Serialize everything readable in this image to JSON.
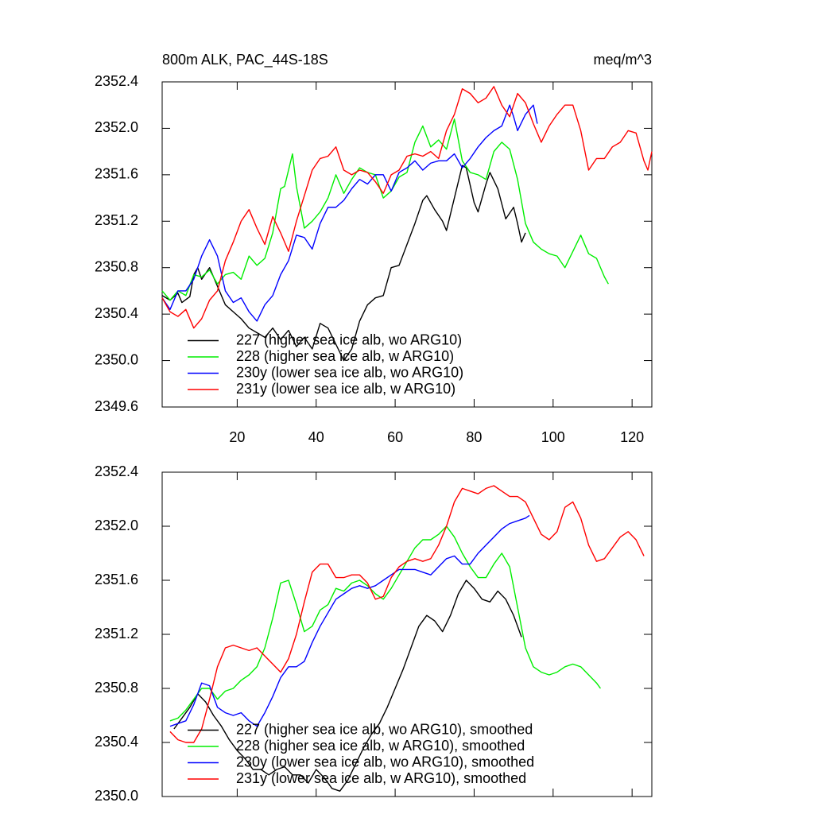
{
  "chart_data": [
    {
      "type": "line",
      "title": "800m ALK, PAC_44S-18S",
      "units": "meq/m^3",
      "xlim": [
        1,
        125
      ],
      "ylim": [
        2349.6,
        2352.4
      ],
      "xticks": [
        20,
        40,
        60,
        80,
        100,
        120
      ],
      "yticks": [
        2349.6,
        {
          "value": 2350.0,
          "label": "2350.0"
        },
        2350.4,
        2350.8,
        2351.2,
        2351.6,
        {
          "value": 2352.0,
          "label": "2352.0"
        },
        2352.4
      ],
      "legend": "lower left",
      "series": [
        {
          "name": "227 (higher sea ice alb, wo ARG10)",
          "color": "#000000",
          "x": [
            1,
            3,
            5,
            6,
            8,
            9,
            10,
            11,
            13,
            15,
            17,
            19,
            21,
            23,
            25,
            27,
            29,
            31,
            33,
            35,
            37,
            39,
            41,
            43,
            45,
            47,
            49,
            51,
            53,
            55,
            57,
            59,
            61,
            63,
            65,
            67,
            68,
            70,
            72,
            73,
            75,
            77,
            78,
            80,
            81,
            83,
            84,
            86,
            88,
            90,
            91,
            92,
            93
          ],
          "values": [
            2350.56,
            2350.52,
            2350.58,
            2350.5,
            2350.55,
            2350.74,
            2350.8,
            2350.7,
            2350.8,
            2350.64,
            2350.48,
            2350.42,
            2350.36,
            2350.28,
            2350.24,
            2350.2,
            2350.28,
            2350.18,
            2350.26,
            2350.12,
            2350.2,
            2350.1,
            2350.32,
            2350.28,
            2350.14,
            2350.0,
            2350.1,
            2350.34,
            2350.48,
            2350.54,
            2350.56,
            2350.8,
            2350.82,
            2351.0,
            2351.18,
            2351.38,
            2351.42,
            2351.3,
            2351.2,
            2351.12,
            2351.4,
            2351.68,
            2351.66,
            2351.36,
            2351.28,
            2351.52,
            2351.62,
            2351.48,
            2351.22,
            2351.32,
            2351.18,
            2351.02,
            2351.1
          ]
        },
        {
          "name": "228 (higher sea ice alb, w ARG10)",
          "color": "#00ee00",
          "x": [
            1,
            3,
            5,
            7,
            9,
            11,
            13,
            15,
            17,
            19,
            21,
            23,
            25,
            27,
            29,
            31,
            32,
            34,
            35,
            37,
            39,
            41,
            43,
            45,
            47,
            49,
            51,
            53,
            55,
            57,
            59,
            61,
            63,
            65,
            67,
            69,
            71,
            73,
            75,
            77,
            79,
            81,
            83,
            85,
            87,
            89,
            91,
            93,
            95,
            97,
            99,
            101,
            103,
            105,
            107,
            109,
            111,
            113,
            114
          ],
          "values": [
            2350.6,
            2350.52,
            2350.6,
            2350.56,
            2350.74,
            2350.72,
            2350.78,
            2350.66,
            2350.74,
            2350.76,
            2350.7,
            2350.9,
            2350.82,
            2350.88,
            2351.1,
            2351.48,
            2351.5,
            2351.78,
            2351.5,
            2351.14,
            2351.2,
            2351.28,
            2351.4,
            2351.6,
            2351.44,
            2351.56,
            2351.66,
            2351.62,
            2351.6,
            2351.4,
            2351.46,
            2351.58,
            2351.62,
            2351.88,
            2352.02,
            2351.84,
            2351.9,
            2351.82,
            2352.08,
            2351.72,
            2351.62,
            2351.6,
            2351.56,
            2351.8,
            2351.88,
            2351.82,
            2351.56,
            2351.18,
            2351.02,
            2350.96,
            2350.92,
            2350.9,
            2350.8,
            2350.94,
            2351.08,
            2350.92,
            2350.88,
            2350.72,
            2350.66
          ]
        },
        {
          "name": "230y (lower sea ice alb, wo ARG10)",
          "color": "#0000ff",
          "x": [
            1,
            3,
            5,
            7,
            9,
            11,
            13,
            15,
            17,
            19,
            21,
            23,
            25,
            27,
            29,
            31,
            33,
            35,
            37,
            39,
            41,
            43,
            45,
            47,
            49,
            51,
            53,
            55,
            57,
            59,
            61,
            63,
            65,
            67,
            69,
            71,
            73,
            75,
            77,
            79,
            81,
            83,
            85,
            87,
            89,
            90,
            91,
            93,
            95,
            96
          ],
          "values": [
            2350.54,
            2350.44,
            2350.6,
            2350.6,
            2350.7,
            2350.9,
            2351.04,
            2350.9,
            2350.6,
            2350.5,
            2350.54,
            2350.42,
            2350.34,
            2350.48,
            2350.56,
            2350.74,
            2350.86,
            2351.08,
            2351.06,
            2350.96,
            2351.18,
            2351.32,
            2351.32,
            2351.38,
            2351.48,
            2351.56,
            2351.52,
            2351.6,
            2351.6,
            2351.46,
            2351.62,
            2351.66,
            2351.72,
            2351.64,
            2351.7,
            2351.72,
            2351.72,
            2351.78,
            2351.66,
            2351.74,
            2351.84,
            2351.92,
            2351.98,
            2352.02,
            2352.2,
            2352.1,
            2351.98,
            2352.12,
            2352.2,
            2352.04
          ]
        },
        {
          "name": "231y (lower sea ice alb, w ARG10)",
          "color": "#ff0000",
          "x": [
            1,
            3,
            5,
            7,
            9,
            11,
            13,
            15,
            17,
            19,
            21,
            23,
            25,
            27,
            29,
            31,
            33,
            35,
            37,
            39,
            41,
            43,
            45,
            47,
            49,
            51,
            53,
            55,
            57,
            59,
            61,
            63,
            65,
            67,
            69,
            71,
            73,
            75,
            77,
            79,
            81,
            83,
            85,
            87,
            89,
            91,
            93,
            95,
            97,
            99,
            101,
            103,
            105,
            107,
            109,
            111,
            113,
            115,
            117,
            119,
            121,
            123,
            124,
            125
          ],
          "values": [
            2350.54,
            2350.42,
            2350.38,
            2350.44,
            2350.28,
            2350.36,
            2350.52,
            2350.6,
            2350.86,
            2351.02,
            2351.2,
            2351.3,
            2351.14,
            2351.0,
            2351.24,
            2351.1,
            2350.94,
            2351.2,
            2351.42,
            2351.64,
            2351.74,
            2351.76,
            2351.84,
            2351.64,
            2351.6,
            2351.64,
            2351.62,
            2351.54,
            2351.44,
            2351.6,
            2351.64,
            2351.76,
            2351.78,
            2351.76,
            2351.8,
            2351.74,
            2351.98,
            2352.12,
            2352.34,
            2352.3,
            2352.22,
            2352.26,
            2352.36,
            2352.2,
            2352.1,
            2352.3,
            2352.22,
            2352.04,
            2351.88,
            2352.02,
            2352.12,
            2352.2,
            2352.2,
            2351.98,
            2351.64,
            2351.74,
            2351.74,
            2351.84,
            2351.88,
            2351.98,
            2351.96,
            2351.72,
            2351.64,
            2351.8
          ]
        }
      ]
    },
    {
      "type": "line",
      "xlim": [
        1,
        125
      ],
      "ylim": [
        2350.0,
        2352.4
      ],
      "xticks": [
        20,
        40,
        60,
        80,
        100,
        120
      ],
      "xtick_labels": false,
      "yticks": [
        {
          "value": 2350.0,
          "label": "2350.0"
        },
        2350.4,
        2350.8,
        2351.2,
        2351.6,
        {
          "value": 2352.0,
          "label": "2352.0"
        },
        2352.4
      ],
      "legend": "lower left",
      "series": [
        {
          "name": "227 (higher sea ice alb, wo ARG10), smoothed",
          "color": "#000000",
          "x": [
            4,
            6,
            8,
            10,
            12,
            14,
            16,
            18,
            20,
            22,
            24,
            26,
            28,
            30,
            32,
            34,
            36,
            38,
            40,
            42,
            44,
            46,
            48,
            50,
            52,
            54,
            56,
            58,
            60,
            62,
            64,
            66,
            68,
            70,
            72,
            74,
            76,
            78,
            80,
            82,
            84,
            86,
            88,
            90,
            92
          ],
          "values": [
            2350.5,
            2350.58,
            2350.66,
            2350.76,
            2350.7,
            2350.6,
            2350.52,
            2350.42,
            2350.34,
            2350.28,
            2350.2,
            2350.2,
            2350.16,
            2350.2,
            2350.22,
            2350.16,
            2350.16,
            2350.1,
            2350.2,
            2350.14,
            2350.06,
            2350.04,
            2350.12,
            2350.24,
            2350.36,
            2350.46,
            2350.54,
            2350.66,
            2350.8,
            2350.94,
            2351.1,
            2351.26,
            2351.34,
            2351.3,
            2351.22,
            2351.34,
            2351.5,
            2351.6,
            2351.54,
            2351.46,
            2351.44,
            2351.52,
            2351.46,
            2351.34,
            2351.18
          ]
        },
        {
          "name": "228 (higher sea ice alb, w ARG10), smoothed",
          "color": "#00ee00",
          "x": [
            3,
            5,
            7,
            9,
            11,
            13,
            15,
            17,
            19,
            21,
            23,
            25,
            27,
            29,
            31,
            33,
            35,
            37,
            39,
            41,
            43,
            45,
            47,
            49,
            51,
            53,
            55,
            57,
            59,
            61,
            63,
            65,
            67,
            69,
            71,
            73,
            75,
            77,
            79,
            81,
            83,
            85,
            87,
            89,
            91,
            93,
            95,
            97,
            99,
            101,
            103,
            105,
            107,
            109,
            111,
            112
          ],
          "values": [
            2350.56,
            2350.58,
            2350.64,
            2350.72,
            2350.8,
            2350.8,
            2350.72,
            2350.78,
            2350.8,
            2350.86,
            2350.9,
            2350.96,
            2351.1,
            2351.32,
            2351.58,
            2351.6,
            2351.42,
            2351.22,
            2351.26,
            2351.38,
            2351.42,
            2351.54,
            2351.52,
            2351.58,
            2351.6,
            2351.56,
            2351.5,
            2351.46,
            2351.54,
            2351.64,
            2351.74,
            2351.84,
            2351.9,
            2351.9,
            2351.94,
            2352.0,
            2351.92,
            2351.8,
            2351.7,
            2351.62,
            2351.62,
            2351.72,
            2351.8,
            2351.7,
            2351.4,
            2351.1,
            2350.96,
            2350.92,
            2350.9,
            2350.92,
            2350.96,
            2350.98,
            2350.96,
            2350.9,
            2350.84,
            2350.8
          ]
        },
        {
          "name": "230y (lower sea ice alb, wo ARG10), smoothed",
          "color": "#0000ff",
          "x": [
            3,
            5,
            7,
            9,
            11,
            13,
            15,
            17,
            19,
            21,
            23,
            25,
            27,
            29,
            31,
            33,
            35,
            37,
            39,
            41,
            43,
            45,
            47,
            49,
            51,
            53,
            55,
            57,
            59,
            61,
            63,
            65,
            67,
            69,
            71,
            73,
            75,
            77,
            79,
            81,
            83,
            85,
            87,
            89,
            91,
            93,
            94
          ],
          "values": [
            2350.52,
            2350.54,
            2350.56,
            2350.68,
            2350.84,
            2350.82,
            2350.66,
            2350.62,
            2350.6,
            2350.62,
            2350.56,
            2350.52,
            2350.62,
            2350.74,
            2350.88,
            2350.96,
            2350.96,
            2351.0,
            2351.14,
            2351.26,
            2351.36,
            2351.46,
            2351.5,
            2351.54,
            2351.56,
            2351.54,
            2351.56,
            2351.6,
            2351.64,
            2351.68,
            2351.68,
            2351.68,
            2351.66,
            2351.64,
            2351.7,
            2351.76,
            2351.78,
            2351.72,
            2351.72,
            2351.8,
            2351.86,
            2351.92,
            2351.98,
            2352.02,
            2352.04,
            2352.06,
            2352.08
          ]
        },
        {
          "name": "231y (lower sea ice alb, w ARG10), smoothed",
          "color": "#ff0000",
          "x": [
            3,
            5,
            7,
            9,
            11,
            13,
            15,
            17,
            19,
            21,
            23,
            25,
            27,
            29,
            31,
            33,
            35,
            37,
            39,
            41,
            43,
            45,
            47,
            49,
            51,
            53,
            55,
            57,
            59,
            61,
            63,
            65,
            67,
            69,
            71,
            73,
            75,
            77,
            79,
            81,
            83,
            85,
            87,
            89,
            91,
            93,
            95,
            97,
            99,
            101,
            103,
            105,
            107,
            109,
            111,
            113,
            115,
            117,
            119,
            121,
            123
          ],
          "values": [
            2350.48,
            2350.42,
            2350.4,
            2350.4,
            2350.5,
            2350.72,
            2350.96,
            2351.1,
            2351.12,
            2351.1,
            2351.08,
            2351.1,
            2351.04,
            2350.98,
            2350.92,
            2351.02,
            2351.2,
            2351.44,
            2351.66,
            2351.72,
            2351.72,
            2351.62,
            2351.62,
            2351.64,
            2351.64,
            2351.58,
            2351.46,
            2351.48,
            2351.62,
            2351.7,
            2351.74,
            2351.76,
            2351.74,
            2351.76,
            2351.86,
            2352.0,
            2352.18,
            2352.28,
            2352.26,
            2352.24,
            2352.28,
            2352.3,
            2352.26,
            2352.22,
            2352.22,
            2352.18,
            2352.06,
            2351.94,
            2351.9,
            2351.96,
            2352.14,
            2352.18,
            2352.06,
            2351.86,
            2351.74,
            2351.76,
            2351.84,
            2351.92,
            2351.96,
            2351.9,
            2351.78
          ]
        }
      ]
    }
  ]
}
